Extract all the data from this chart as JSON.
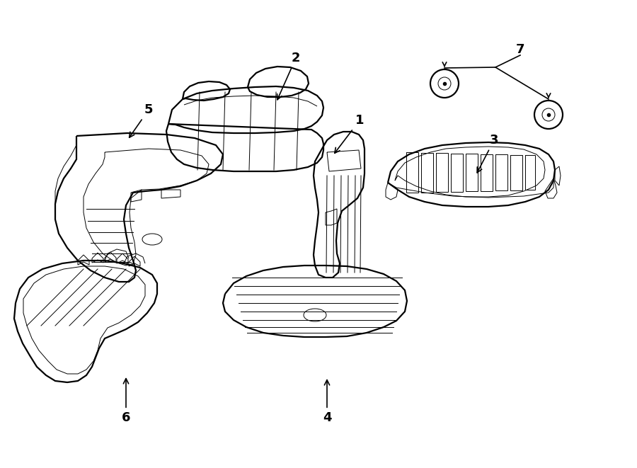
{
  "bg_color": "#ffffff",
  "line_color": "#000000",
  "fig_width": 9.0,
  "fig_height": 6.61,
  "dpi": 100,
  "lw_thick": 1.6,
  "lw_thin": 0.7,
  "label_fontsize": 13
}
